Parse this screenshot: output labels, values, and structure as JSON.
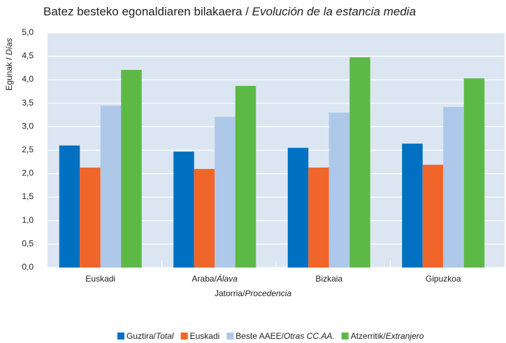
{
  "chart_data": {
    "type": "bar",
    "title": "Batez besteko egonaldiaren bilakaera / Evolución de la estancia media",
    "ylabel": "Egunak / Días",
    "xlabel": "Jatorria/Procedencia",
    "categories": [
      "Euskadi",
      "Araba/Álava",
      "Bizkaia",
      "Gipuzkoa"
    ],
    "series": [
      {
        "name": "Guztira/Total",
        "color": "#0070c0",
        "values": [
          2.6,
          2.47,
          2.55,
          2.64
        ]
      },
      {
        "name": "Euskadi",
        "color": "#f0662a",
        "values": [
          2.13,
          2.1,
          2.13,
          2.19
        ]
      },
      {
        "name": "Beste AAEE/Otras CC.AA.",
        "color": "#adc8e8",
        "values": [
          3.45,
          3.21,
          3.3,
          3.42
        ]
      },
      {
        "name": "Atzerritik/Extranjero",
        "color": "#5cb946",
        "values": [
          4.21,
          3.87,
          4.48,
          4.03
        ]
      }
    ],
    "ylim": [
      0,
      5
    ],
    "yticks": [
      {
        "value": 0,
        "label": "0,0"
      },
      {
        "value": 0.5,
        "label": "0,5"
      },
      {
        "value": 1,
        "label": "1,0"
      },
      {
        "value": 1.5,
        "label": "1,5"
      },
      {
        "value": 2,
        "label": "2,0"
      },
      {
        "value": 2.5,
        "label": "2,5"
      },
      {
        "value": 3,
        "label": "3,0"
      },
      {
        "value": 3.5,
        "label": "3,5"
      },
      {
        "value": 4,
        "label": "4,0"
      },
      {
        "value": 4.5,
        "label": "4,5"
      },
      {
        "value": 5,
        "label": "5,0"
      }
    ],
    "grid": true
  }
}
